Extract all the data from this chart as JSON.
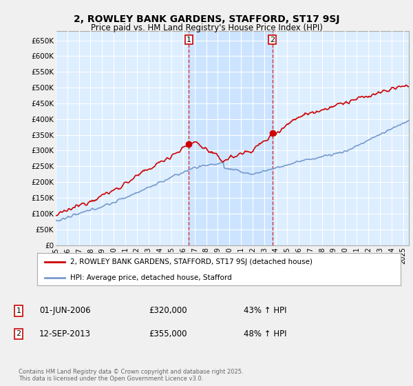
{
  "title": "2, ROWLEY BANK GARDENS, STAFFORD, ST17 9SJ",
  "subtitle": "Price paid vs. HM Land Registry's House Price Index (HPI)",
  "ylabel_ticks": [
    "£0",
    "£50K",
    "£100K",
    "£150K",
    "£200K",
    "£250K",
    "£300K",
    "£350K",
    "£400K",
    "£450K",
    "£500K",
    "£550K",
    "£600K",
    "£650K"
  ],
  "ytick_vals": [
    0,
    50000,
    100000,
    150000,
    200000,
    250000,
    300000,
    350000,
    400000,
    450000,
    500000,
    550000,
    600000,
    650000
  ],
  "ylim": [
    0,
    680000
  ],
  "xlim_start": 1995.0,
  "xlim_end": 2025.5,
  "purchase1_x": 2006.5,
  "purchase1_y": 320000,
  "purchase2_x": 2013.71,
  "purchase2_y": 355000,
  "legend_line1": "2, ROWLEY BANK GARDENS, STAFFORD, ST17 9SJ (detached house)",
  "legend_line2": "HPI: Average price, detached house, Stafford",
  "annotation1_date": "01-JUN-2006",
  "annotation1_price": "£320,000",
  "annotation1_hpi": "43% ↑ HPI",
  "annotation2_date": "12-SEP-2013",
  "annotation2_price": "£355,000",
  "annotation2_hpi": "48% ↑ HPI",
  "footer": "Contains HM Land Registry data © Crown copyright and database right 2025.\nThis data is licensed under the Open Government Licence v3.0.",
  "red_color": "#cc0000",
  "blue_color": "#7799cc",
  "bg_color": "#ddeeff",
  "shade_color": "#cce4ff",
  "grid_color": "#ffffff",
  "fig_bg": "#f0f0f0"
}
